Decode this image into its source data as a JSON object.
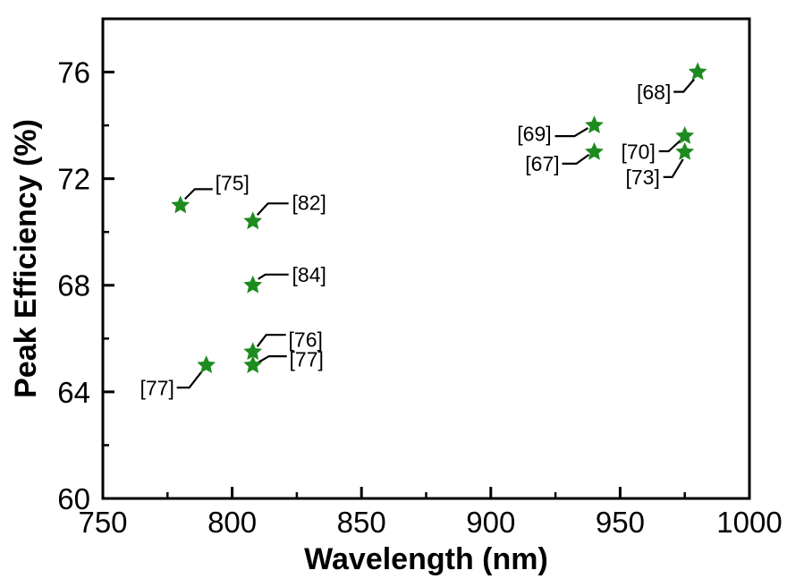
{
  "figure": {
    "background": "#ffffff"
  },
  "chart_data": {
    "type": "scatter",
    "title": "",
    "xlabel": "Wavelength (nm)",
    "ylabel": "Peak Efficiency (%)",
    "xlim": [
      750,
      1000
    ],
    "ylim": [
      60,
      78
    ],
    "x_major_ticks": [
      750,
      800,
      850,
      900,
      950,
      1000
    ],
    "x_minor_ticks": [
      775,
      825,
      875,
      925,
      975
    ],
    "y_major_ticks": [
      60,
      64,
      68,
      72,
      76
    ],
    "y_minor_ticks": [
      62,
      66,
      70,
      74
    ],
    "grid": false,
    "legend": false,
    "marker": "star",
    "marker_color": "#1e8b1e",
    "axis_color": "#000000",
    "points": [
      {
        "ref": "[75]",
        "x": 780,
        "y": 71.0,
        "label_offset": [
          58,
          -25
        ],
        "leader": [
          [
            5,
            -7
          ],
          [
            16,
            -18
          ],
          [
            36,
            -18
          ]
        ]
      },
      {
        "ref": "[82]",
        "x": 808,
        "y": 70.4,
        "label_offset": [
          63,
          -21
        ],
        "leader": [
          [
            5,
            -7
          ],
          [
            17,
            -20
          ],
          [
            40,
            -20
          ]
        ]
      },
      {
        "ref": "[84]",
        "x": 808,
        "y": 68.0,
        "label_offset": [
          63,
          -12
        ],
        "leader": [
          [
            6,
            -7
          ],
          [
            14,
            -12
          ],
          [
            40,
            -12
          ]
        ]
      },
      {
        "ref": "[76]",
        "x": 808,
        "y": 65.5,
        "label_offset": [
          59,
          -14
        ],
        "leader": [
          [
            5,
            -6
          ],
          [
            15,
            -19
          ],
          [
            37,
            -19
          ]
        ]
      },
      {
        "ref": "[77]",
        "x": 808,
        "y": 65.0,
        "label_offset": [
          60,
          -7
        ],
        "leader": [
          [
            6,
            -3
          ],
          [
            18,
            -10
          ],
          [
            38,
            -10
          ]
        ]
      },
      {
        "ref": "[77]",
        "x": 790,
        "y": 65.0,
        "label_offset": [
          -55,
          25
        ],
        "leader": [
          [
            -5,
            7
          ],
          [
            -19,
            25
          ],
          [
            -33,
            25
          ]
        ]
      },
      {
        "ref": "[69]",
        "x": 940,
        "y": 74.0,
        "label_offset": [
          -67,
          9
        ],
        "leader": [
          [
            -7,
            3
          ],
          [
            -22,
            12
          ],
          [
            -44,
            12
          ]
        ]
      },
      {
        "ref": "[67]",
        "x": 940,
        "y": 73.0,
        "label_offset": [
          -58,
          13
        ],
        "leader": [
          [
            -6,
            3
          ],
          [
            -20,
            13
          ],
          [
            -36,
            13
          ]
        ]
      },
      {
        "ref": "[68]",
        "x": 980,
        "y": 76.0,
        "label_offset": [
          -49,
          22
        ],
        "leader": [
          [
            -4,
            8
          ],
          [
            -16,
            22
          ],
          [
            -27,
            22
          ]
        ]
      },
      {
        "ref": "[70]",
        "x": 975,
        "y": 73.6,
        "label_offset": [
          -52,
          17
        ],
        "leader": [
          [
            -5,
            5
          ],
          [
            -18,
            17
          ],
          [
            -29,
            17
          ]
        ]
      },
      {
        "ref": "[73]",
        "x": 975,
        "y": 73.0,
        "label_offset": [
          -47,
          28
        ],
        "leader": [
          [
            -2,
            8
          ],
          [
            -14,
            28
          ],
          [
            -24,
            28
          ]
        ]
      }
    ]
  }
}
